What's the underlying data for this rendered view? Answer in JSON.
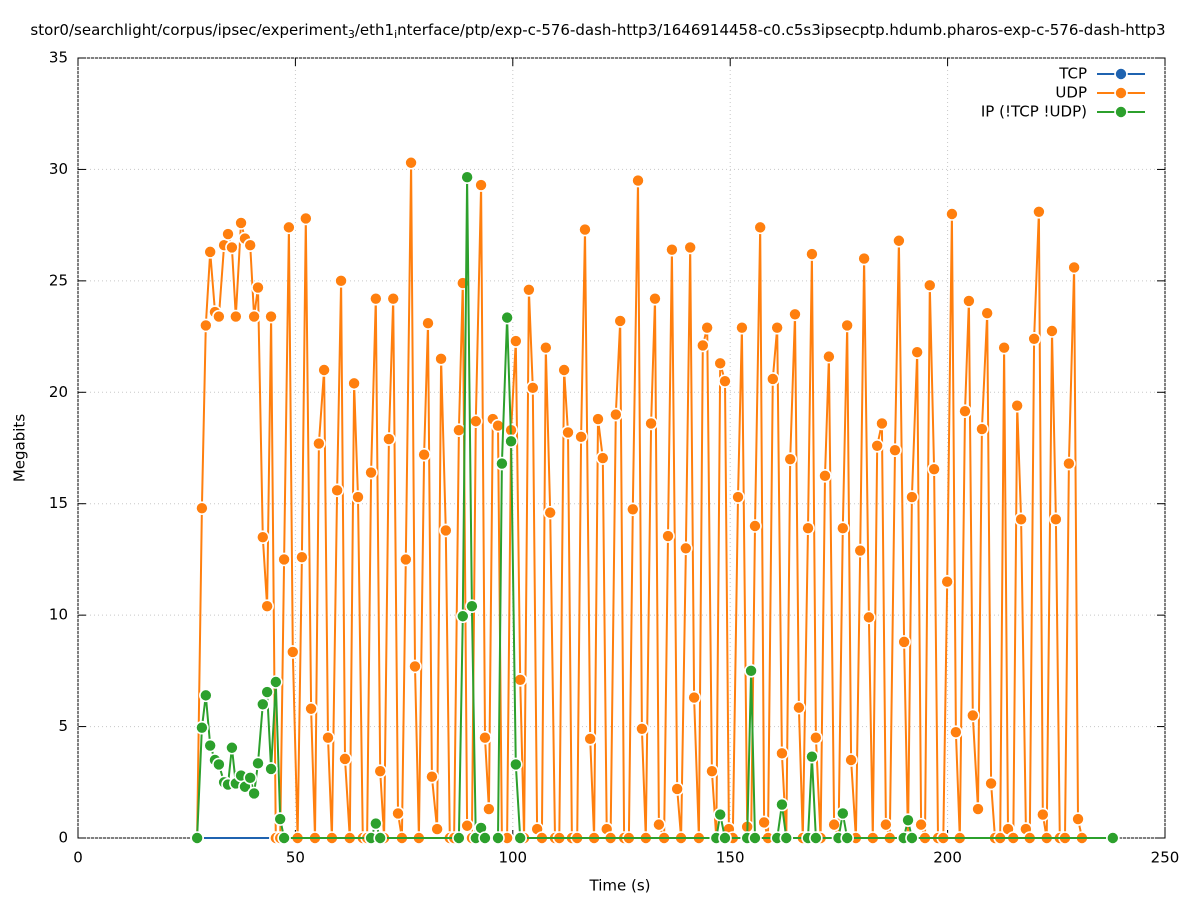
{
  "chart_data": {
    "type": "line",
    "title": [
      "stor0/searchlight/corpus/ipsec/experiment",
      "3",
      "/eth1",
      "i",
      "nterface/ptp/exp-c-576-dash-http3/1646914458-c0.c5s3ipsecptp.hdumb.pharos-exp-c-576-dash-http3"
    ],
    "x_label": "Time (s)",
    "y_label": "Megabits",
    "xlim": [
      0,
      250
    ],
    "xticks": [
      0,
      50,
      100,
      150,
      200,
      250
    ],
    "ylim": [
      0,
      35
    ],
    "yticks": [
      0,
      5,
      10,
      15,
      20,
      25,
      30,
      35
    ],
    "grid": true,
    "legend": "top-right",
    "series": [
      {
        "name": "TCP",
        "color": "#1f63b0",
        "x": [
          27.4,
          238.0
        ],
        "values": [
          0,
          0
        ]
      },
      {
        "name": "UDP",
        "color": "#ff7f0e",
        "x": [
          27.4,
          28.5,
          29.4,
          30.4,
          31.5,
          32.4,
          33.6,
          34.5,
          35.4,
          36.3,
          37.5,
          38.4,
          39.6,
          40.5,
          41.4,
          42.5,
          43.5,
          44.4,
          45.5,
          46.5,
          47.4,
          48.5,
          49.4,
          50.5,
          51.5,
          52.4,
          53.6,
          54.5,
          55.4,
          56.6,
          57.5,
          58.4,
          59.6,
          60.5,
          61.4,
          62.5,
          63.5,
          64.4,
          65.5,
          66.5,
          67.4,
          68.5,
          69.5,
          70.4,
          71.5,
          72.5,
          73.6,
          74.5,
          75.4,
          76.6,
          77.5,
          78.4,
          79.6,
          80.5,
          81.4,
          82.6,
          83.5,
          84.6,
          85.5,
          86.5,
          87.6,
          88.5,
          89.5,
          90.6,
          91.5,
          92.7,
          93.6,
          94.5,
          95.4,
          96.6,
          97.5,
          98.7,
          99.6,
          100.7,
          101.7,
          102.6,
          103.7,
          104.6,
          105.6,
          106.7,
          107.6,
          108.6,
          109.7,
          110.7,
          111.8,
          112.7,
          113.6,
          114.8,
          115.7,
          116.6,
          117.8,
          118.7,
          119.6,
          120.7,
          121.6,
          122.5,
          123.7,
          124.7,
          125.6,
          126.7,
          127.6,
          128.8,
          129.7,
          130.6,
          131.8,
          132.7,
          133.6,
          134.8,
          135.7,
          136.6,
          137.8,
          138.7,
          139.8,
          140.8,
          141.7,
          142.8,
          143.7,
          144.7,
          145.8,
          146.8,
          147.7,
          148.8,
          149.7,
          150.6,
          151.8,
          152.7,
          153.9,
          154.8,
          155.7,
          156.9,
          157.8,
          158.7,
          159.8,
          160.8,
          161.9,
          162.9,
          163.8,
          164.9,
          165.8,
          166.7,
          167.9,
          168.8,
          169.7,
          170.8,
          171.8,
          172.7,
          173.9,
          174.9,
          175.9,
          176.9,
          177.8,
          178.9,
          179.9,
          180.8,
          181.9,
          182.8,
          183.8,
          184.9,
          185.8,
          186.7,
          187.9,
          188.8,
          190.0,
          190.9,
          191.8,
          193.0,
          193.9,
          194.8,
          195.9,
          196.9,
          197.8,
          199.0,
          199.9,
          201.0,
          201.9,
          202.8,
          204.0,
          204.9,
          205.8,
          207.0,
          207.9,
          209.1,
          210.0,
          210.9,
          212.1,
          213.0,
          213.9,
          215.1,
          216.0,
          216.9,
          218.0,
          218.9,
          219.9,
          221.0,
          221.9,
          222.8,
          224.0,
          224.9,
          225.8,
          227.0,
          227.9,
          229.1,
          230.0,
          230.9
        ],
        "values": [
          0,
          14.8,
          23.0,
          26.3,
          23.6,
          23.4,
          26.6,
          27.1,
          26.5,
          23.4,
          27.6,
          26.9,
          26.6,
          23.4,
          24.7,
          13.5,
          10.4,
          23.4,
          0,
          0,
          12.5,
          27.4,
          8.35,
          0,
          12.6,
          27.8,
          5.8,
          0,
          17.7,
          21.0,
          4.5,
          0,
          15.6,
          25.0,
          3.55,
          0,
          20.4,
          15.3,
          0,
          0,
          16.4,
          24.2,
          3.0,
          0,
          17.9,
          24.2,
          1.1,
          0,
          12.5,
          30.3,
          7.7,
          0,
          17.2,
          23.1,
          2.75,
          0.4,
          21.5,
          13.8,
          0,
          0,
          18.3,
          24.9,
          0.55,
          0,
          18.7,
          29.3,
          4.5,
          1.3,
          18.8,
          18.5,
          0,
          0,
          18.3,
          22.3,
          7.1,
          0,
          24.6,
          20.2,
          0.4,
          0,
          22.0,
          14.6,
          0,
          0,
          21.0,
          18.2,
          0,
          0,
          18.0,
          27.3,
          4.45,
          0,
          18.8,
          17.05,
          0.4,
          0,
          19.0,
          23.2,
          0,
          0,
          14.75,
          29.5,
          4.9,
          0,
          18.6,
          24.2,
          0.6,
          0,
          13.55,
          26.4,
          2.2,
          0,
          13.0,
          26.5,
          6.3,
          0,
          22.1,
          22.9,
          3.0,
          0,
          21.3,
          20.5,
          0.4,
          0,
          15.3,
          22.9,
          0.5,
          0,
          14.0,
          27.4,
          0.7,
          0,
          20.6,
          22.9,
          3.8,
          0,
          17.0,
          23.5,
          5.85,
          0,
          13.9,
          26.2,
          4.5,
          0,
          16.25,
          21.6,
          0.6,
          0,
          13.9,
          23.0,
          3.5,
          0,
          12.9,
          26.0,
          9.9,
          0,
          17.6,
          18.6,
          0.6,
          0,
          17.4,
          26.8,
          8.8,
          0,
          15.3,
          21.8,
          0.6,
          0,
          24.8,
          16.55,
          0,
          0,
          11.5,
          28.0,
          4.75,
          0,
          19.15,
          24.1,
          5.5,
          1.3,
          18.35,
          23.55,
          2.45,
          0,
          0,
          22.0,
          0.4,
          0,
          19.4,
          14.3,
          0.4,
          0,
          22.4,
          28.1,
          1.05,
          0,
          22.75,
          14.3,
          0,
          0,
          16.8,
          25.6,
          0.85,
          0
        ]
      },
      {
        "name": "IP (!TCP  !UDP)",
        "color": "#2ca02c",
        "x": [
          27.4,
          28.5,
          29.4,
          30.4,
          31.5,
          32.4,
          33.6,
          34.5,
          35.4,
          36.3,
          37.5,
          38.4,
          39.6,
          40.5,
          41.4,
          42.5,
          43.5,
          44.4,
          45.5,
          46.5,
          47.4,
          67.4,
          68.5,
          69.5,
          87.6,
          88.5,
          89.5,
          90.6,
          91.5,
          92.7,
          93.6,
          96.6,
          97.5,
          98.7,
          99.6,
          100.7,
          101.7,
          146.8,
          147.7,
          148.8,
          153.9,
          154.8,
          155.7,
          160.8,
          161.9,
          162.9,
          167.9,
          168.8,
          169.7,
          174.9,
          175.9,
          176.9,
          189.9,
          190.9,
          191.8,
          238.0
        ],
        "values": [
          0,
          4.95,
          6.4,
          4.15,
          3.5,
          3.3,
          2.5,
          2.4,
          4.05,
          2.45,
          2.8,
          2.3,
          2.7,
          2.0,
          3.35,
          6.0,
          6.55,
          3.1,
          7.0,
          0.85,
          0,
          0,
          0.65,
          0,
          0,
          9.95,
          29.65,
          10.4,
          0,
          0.45,
          0,
          0,
          16.8,
          23.35,
          17.8,
          3.3,
          0,
          0,
          1.05,
          0,
          0,
          7.5,
          0,
          0,
          1.5,
          0,
          0,
          3.65,
          0,
          0,
          1.1,
          0,
          0,
          0.8,
          0,
          0
        ]
      }
    ]
  }
}
